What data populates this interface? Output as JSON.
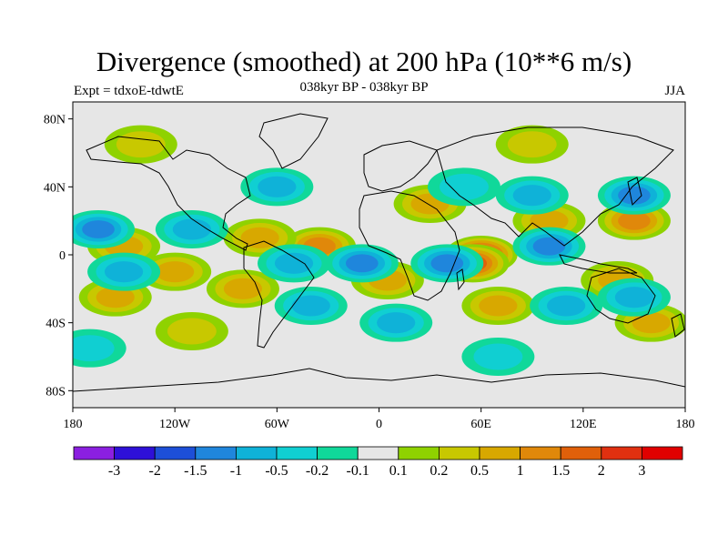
{
  "title": "Divergence (smoothed) at 200 hPa (10**6 m/s)",
  "left_label": "Expt = tdxoE-tdwtE",
  "center_label": "038kyr BP - 038kyr BP",
  "right_label": "JJA",
  "y_ticks": [
    "80N",
    "40N",
    "0",
    "40S",
    "80S"
  ],
  "x_ticks": [
    "180",
    "120W",
    "60W",
    "0",
    "60E",
    "120E",
    "180"
  ],
  "colorbar": {
    "colors": [
      "#8b1fe0",
      "#2e10d8",
      "#1d4fd8",
      "#1f86dc",
      "#0fb2d8",
      "#10cfd2",
      "#10d89a",
      "#e6e6e6",
      "#8fd200",
      "#c8c800",
      "#d8a800",
      "#e0880a",
      "#e0600a",
      "#e03010",
      "#e00000"
    ],
    "labels": [
      "-3",
      "-2",
      "-1.5",
      "-1",
      "-0.5",
      "-0.2",
      "-0.1",
      "0.1",
      "0.2",
      "0.5",
      "1",
      "1.5",
      "2",
      "3"
    ]
  },
  "chart_data": {
    "type": "heatmap",
    "title": "Divergence (smoothed) at 200 hPa (10**6 m/s)",
    "subtitle": "038kyr BP - 038kyr BP",
    "xlim": [
      -180,
      180
    ],
    "ylim": [
      -90,
      90
    ],
    "x_ticks": [
      "180",
      "120W",
      "60W",
      "0",
      "60E",
      "120E",
      "180"
    ],
    "y_ticks": [
      "80N",
      "40N",
      "0",
      "40S",
      "80S"
    ],
    "levels": [
      -3,
      -2,
      -1.5,
      -1,
      -0.5,
      -0.2,
      -0.1,
      0.1,
      0.2,
      0.5,
      1,
      1.5,
      2,
      3
    ],
    "blobs": [
      {
        "lon": 60,
        "lat": 0,
        "value": 2
      },
      {
        "lon": 55,
        "lat": -5,
        "value": 1.5
      },
      {
        "lon": -35,
        "lat": 5,
        "value": 1
      },
      {
        "lon": -70,
        "lat": 10,
        "value": 0.5
      },
      {
        "lon": -150,
        "lat": 5,
        "value": 0.5
      },
      {
        "lon": -120,
        "lat": -10,
        "value": 0.5
      },
      {
        "lon": -155,
        "lat": -25,
        "value": 0.5
      },
      {
        "lon": -80,
        "lat": -20,
        "value": 0.5
      },
      {
        "lon": 5,
        "lat": -15,
        "value": 0.5
      },
      {
        "lon": 30,
        "lat": 30,
        "value": 0.5
      },
      {
        "lon": 100,
        "lat": 20,
        "value": 0.5
      },
      {
        "lon": 150,
        "lat": 20,
        "value": 1
      },
      {
        "lon": 140,
        "lat": -15,
        "value": 0.5
      },
      {
        "lon": 70,
        "lat": -30,
        "value": 0.5
      },
      {
        "lon": 160,
        "lat": -40,
        "value": 0.5
      },
      {
        "lon": -110,
        "lat": -45,
        "value": 0.2
      },
      {
        "lon": -140,
        "lat": 65,
        "value": 0.2
      },
      {
        "lon": 90,
        "lat": 65,
        "value": 0.2
      },
      {
        "lon": -10,
        "lat": -5,
        "value": -1
      },
      {
        "lon": -50,
        "lat": -5,
        "value": -0.5
      },
      {
        "lon": -165,
        "lat": 15,
        "value": -1
      },
      {
        "lon": -110,
        "lat": 15,
        "value": -0.5
      },
      {
        "lon": 100,
        "lat": 5,
        "value": -1
      },
      {
        "lon": 150,
        "lat": 35,
        "value": -1
      },
      {
        "lon": 40,
        "lat": -5,
        "value": -1
      },
      {
        "lon": -40,
        "lat": -30,
        "value": -0.5
      },
      {
        "lon": 10,
        "lat": -40,
        "value": -0.5
      },
      {
        "lon": 110,
        "lat": -30,
        "value": -0.5
      },
      {
        "lon": 150,
        "lat": -25,
        "value": -0.5
      },
      {
        "lon": -150,
        "lat": -10,
        "value": -0.5
      },
      {
        "lon": -60,
        "lat": 40,
        "value": -0.5
      },
      {
        "lon": -170,
        "lat": -55,
        "value": -0.2
      },
      {
        "lon": 70,
        "lat": -60,
        "value": -0.2
      },
      {
        "lon": 90,
        "lat": 35,
        "value": -0.5
      },
      {
        "lon": 50,
        "lat": 40,
        "value": -0.2
      }
    ]
  }
}
